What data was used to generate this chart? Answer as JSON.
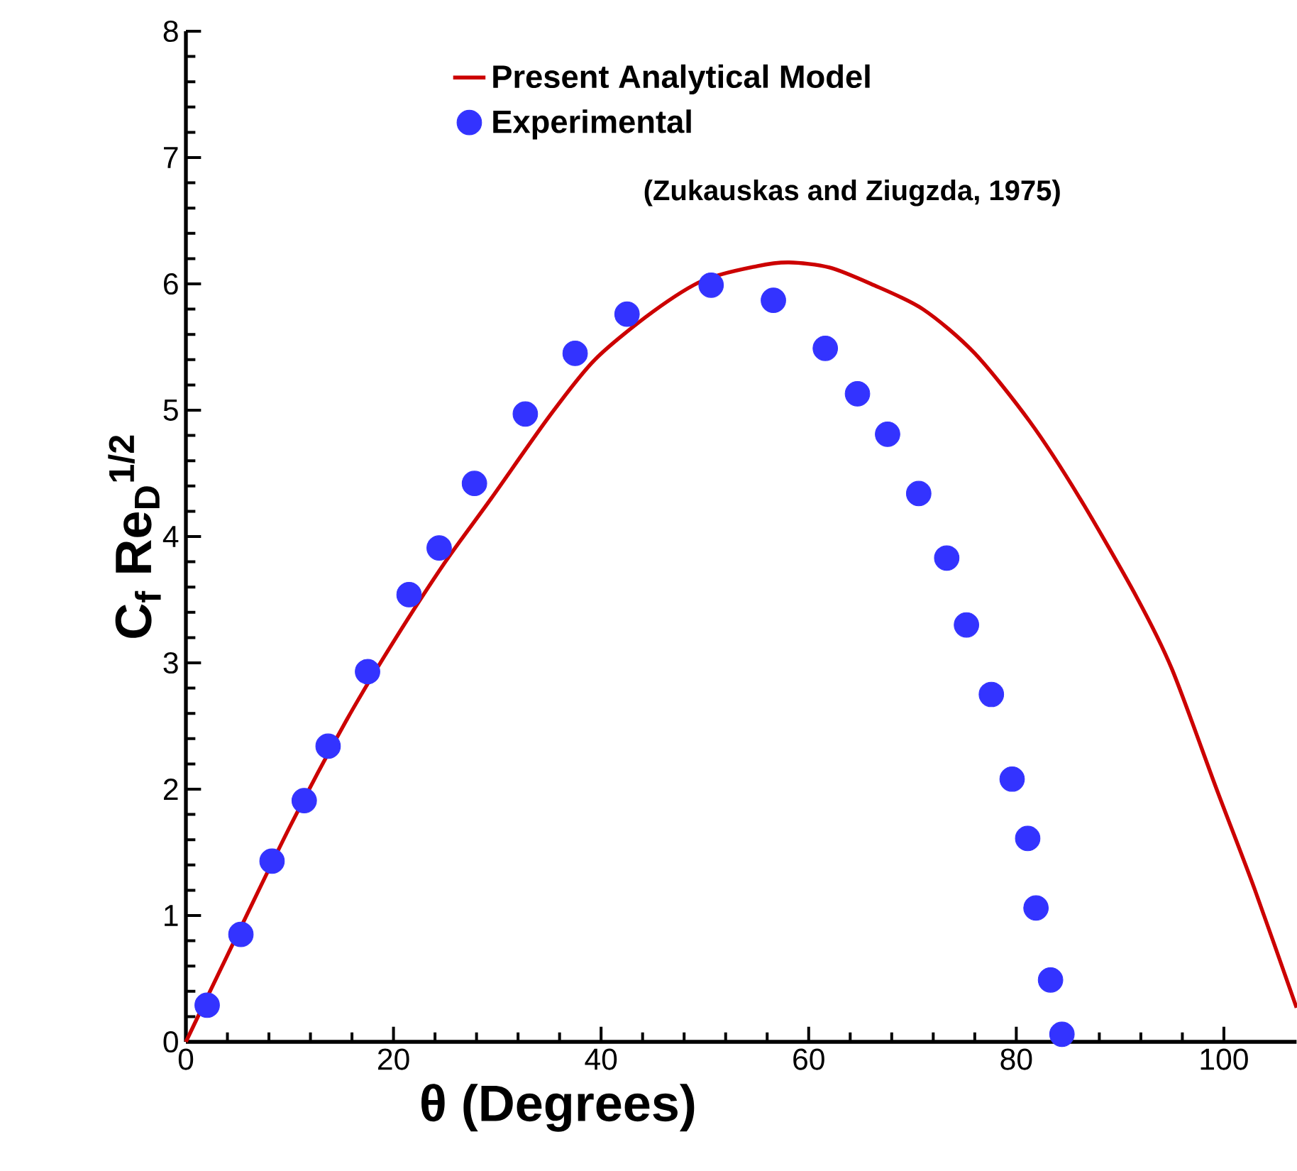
{
  "chart_data": {
    "type": "line",
    "xlabel": "θ (Degrees)",
    "ylabel": "C$_{f}$ Re$_{D}$$^{1/2}$",
    "xlim": [
      0,
      107
    ],
    "ylim": [
      0,
      8
    ],
    "xticks": [
      0,
      20,
      40,
      60,
      80,
      100
    ],
    "yticks": [
      0,
      1,
      2,
      3,
      4,
      5,
      6,
      7,
      8
    ],
    "legend": "top",
    "grid": false,
    "annotations": [
      "(Zukauskas and Ziugzda, 1975)"
    ],
    "series": [
      {
        "name": "Present Analytical Model",
        "type": "line",
        "color": "#cc0000",
        "marker": "none",
        "line_style": "solid",
        "x": [
          0,
          3.5,
          10,
          15.5,
          20.1,
          25,
          29.4,
          35,
          39.4,
          45,
          49.9,
          55,
          58.1,
          62,
          66,
          71,
          76,
          81.3,
          86,
          91.6,
          95,
          99.3,
          103,
          107
        ],
        "values": [
          0,
          0.6,
          1.7,
          2.55,
          3.18,
          3.8,
          4.3,
          4.95,
          5.4,
          5.78,
          6.03,
          6.14,
          6.17,
          6.13,
          6.0,
          5.8,
          5.45,
          4.91,
          4.32,
          3.52,
          2.95,
          2.0,
          1.2,
          0.27
        ]
      },
      {
        "name": "Experimental",
        "type": "scatter",
        "color": "#3333ff",
        "marker": "circle",
        "x": [
          2.05,
          5.3,
          8.3,
          11.4,
          13.7,
          17.5,
          21.5,
          24.4,
          27.8,
          32.7,
          37.5,
          42.5,
          50.6,
          56.6,
          61.6,
          64.7,
          67.6,
          70.6,
          73.3,
          75.2,
          77.6,
          79.6,
          81.1,
          81.9,
          83.3,
          84.4
        ],
        "values": [
          0.29,
          0.85,
          1.43,
          1.91,
          2.34,
          2.93,
          3.54,
          3.91,
          4.42,
          4.97,
          5.45,
          5.76,
          5.99,
          5.87,
          5.49,
          5.13,
          4.81,
          4.34,
          3.83,
          3.3,
          2.75,
          2.08,
          1.61,
          1.06,
          0.49,
          0.06
        ]
      }
    ]
  }
}
